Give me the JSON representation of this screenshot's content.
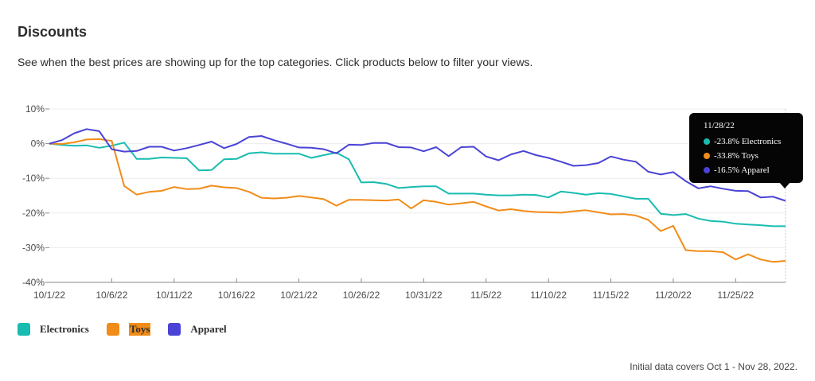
{
  "header": {
    "title": "Discounts",
    "subtitle": "See when the best prices are showing up for the top categories. Click products below to filter your views."
  },
  "footnote": "Initial data covers Oct 1 - Nov 28, 2022.",
  "legend": [
    {
      "label": "Electronics",
      "color": "#18bcb0"
    },
    {
      "label": "Toys",
      "color": "#f28c18",
      "highlighted": true
    },
    {
      "label": "Apparel",
      "color": "#4a43d6"
    }
  ],
  "tooltip": {
    "date": "11/28/22",
    "rows": [
      {
        "text": "-23.8% Electronics",
        "color": "#18bcb0"
      },
      {
        "text": "-33.8% Toys",
        "color": "#f28c18"
      },
      {
        "text": "-16.5% Apparel",
        "color": "#4a43d6"
      }
    ]
  },
  "chart_data": {
    "type": "line",
    "ylim": [
      -40,
      10
    ],
    "yticks": [
      10,
      0,
      -10,
      -20,
      -30,
      -40
    ],
    "ytick_labels": [
      "10%",
      "0%",
      "-10%",
      "-20%",
      "-30%",
      "-40%"
    ],
    "xtick_labels": [
      "10/1/22",
      "10/6/22",
      "10/11/22",
      "10/16/22",
      "10/21/22",
      "10/26/22",
      "10/31/22",
      "11/5/22",
      "11/10/22",
      "11/15/22",
      "11/20/22",
      "11/25/22"
    ],
    "x_start": "10/1/22",
    "x_end": "11/28/22",
    "grid": true,
    "legend_position": "bottom-left",
    "series": [
      {
        "name": "Electronics",
        "color": "#18bcb0",
        "values": [
          0,
          -0.4,
          -0.6,
          -0.5,
          -1.2,
          -0.6,
          0.3,
          -4.4,
          -4.4,
          -4.0,
          -4.1,
          -4.2,
          -7.7,
          -7.6,
          -4.5,
          -4.4,
          -2.8,
          -2.5,
          -2.9,
          -2.9,
          -2.9,
          -4.1,
          -3.3,
          -2.6,
          -4.5,
          -11.2,
          -11.1,
          -11.6,
          -12.8,
          -12.5,
          -12.3,
          -12.3,
          -14.4,
          -14.4,
          -14.4,
          -14.7,
          -14.9,
          -14.9,
          -14.7,
          -14.8,
          -15.5,
          -13.8,
          -14.2,
          -14.7,
          -14.3,
          -14.5,
          -15.2,
          -15.9,
          -15.9,
          -20.2,
          -20.6,
          -20.3,
          -21.6,
          -22.3,
          -22.5,
          -23.1,
          -23.3,
          -23.5,
          -23.8,
          -23.8
        ]
      },
      {
        "name": "Toys",
        "color": "#f28c18",
        "values": [
          0,
          -0.1,
          0.4,
          1.2,
          1.3,
          0.8,
          -12.2,
          -14.7,
          -13.9,
          -13.6,
          -12.5,
          -13.1,
          -13.0,
          -12.1,
          -12.6,
          -12.8,
          -13.9,
          -15.6,
          -15.8,
          -15.6,
          -15.1,
          -15.5,
          -16.0,
          -17.9,
          -16.2,
          -16.2,
          -16.3,
          -16.4,
          -16.1,
          -18.7,
          -16.3,
          -16.8,
          -17.6,
          -17.2,
          -16.8,
          -18.1,
          -19.3,
          -18.9,
          -19.4,
          -19.7,
          -19.8,
          -19.9,
          -19.5,
          -19.2,
          -19.8,
          -20.4,
          -20.3,
          -20.7,
          -22.0,
          -25.2,
          -23.7,
          -30.7,
          -31.0,
          -31.0,
          -31.3,
          -33.4,
          -31.9,
          -33.4,
          -34.1,
          -33.8
        ]
      },
      {
        "name": "Apparel",
        "color": "#4a43d6",
        "values": [
          0,
          1.0,
          3.0,
          4.2,
          3.6,
          -1.6,
          -2.3,
          -2.1,
          -0.9,
          -0.9,
          -2.0,
          -1.3,
          -0.4,
          0.6,
          -1.3,
          -0.1,
          1.9,
          2.2,
          1.0,
          0,
          -1.1,
          -1.2,
          -1.6,
          -2.8,
          -0.3,
          -0.4,
          0.2,
          0.2,
          -1.0,
          -1.1,
          -2.2,
          -1.0,
          -3.6,
          -1.0,
          -0.9,
          -3.7,
          -4.8,
          -3.1,
          -2.1,
          -3.3,
          -4.1,
          -5.2,
          -6.4,
          -6.2,
          -5.6,
          -3.7,
          -4.6,
          -5.2,
          -8.1,
          -8.9,
          -8.2,
          -10.8,
          -12.9,
          -12.3,
          -13.0,
          -13.6,
          -13.7,
          -15.5,
          -15.3,
          -16.5
        ]
      }
    ]
  }
}
